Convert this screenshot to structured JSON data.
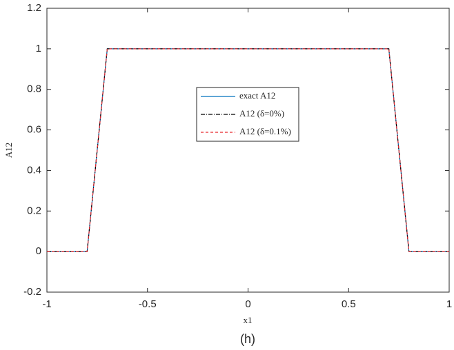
{
  "chart_data": {
    "type": "line",
    "x": [
      -1,
      -0.8,
      -0.7,
      0.7,
      0.8,
      1
    ],
    "series": [
      {
        "name": "exact A12",
        "color": "#0072bd",
        "dash": "none",
        "values": [
          0,
          0,
          1,
          1,
          0,
          0
        ]
      },
      {
        "name": "A12 (δ=0%)",
        "color": "#000000",
        "dash": "6 2 1 2",
        "values": [
          0,
          0,
          1,
          1,
          0,
          0
        ]
      },
      {
        "name": "A12 (δ=0.1%)",
        "color": "#e8262b",
        "dash": "4 3",
        "values": [
          0,
          0,
          1,
          1,
          0,
          0
        ]
      }
    ],
    "xlim": [
      -1,
      1
    ],
    "xticks": [
      -1,
      -0.5,
      0,
      0.5,
      1
    ],
    "ylim": [
      -0.2,
      1.2
    ],
    "yticks": [
      -0.2,
      0,
      0.2,
      0.4,
      0.6,
      0.8,
      1,
      1.2
    ],
    "xlabel": "x1",
    "ylabel": "A12",
    "caption": "(h)",
    "grid": false
  }
}
